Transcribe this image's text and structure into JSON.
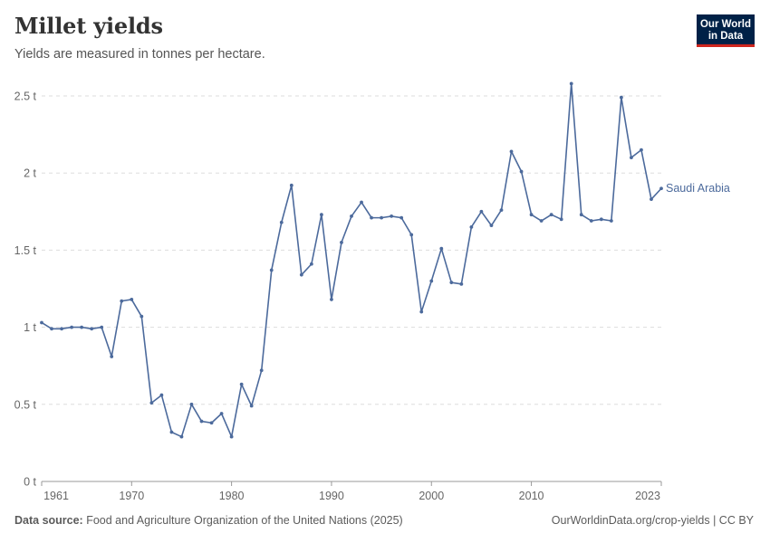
{
  "header": {
    "title": "Millet yields",
    "subtitle": "Yields are measured in tonnes per hectare."
  },
  "logo": {
    "line1": "Our World",
    "line2": "in Data",
    "bg": "#002147",
    "accent": "#ce261e"
  },
  "footer": {
    "source_label": "Data source:",
    "source_text": " Food and Agriculture Organization of the United Nations (2025)",
    "url_license": "OurWorldinData.org/crop-yields | CC BY"
  },
  "chart_data": {
    "type": "line",
    "title": "Millet yields",
    "xlabel": "",
    "ylabel": "",
    "xlim": [
      1961,
      2023
    ],
    "ylim": [
      0,
      2.5
    ],
    "y_ticks": [
      0,
      0.5,
      1,
      1.5,
      2,
      2.5
    ],
    "y_tick_labels": [
      "0 t",
      "0.5 t",
      "1 t",
      "1.5 t",
      "2 t",
      "2.5 t"
    ],
    "x_ticks": [
      1961,
      1970,
      1980,
      1990,
      2000,
      2010,
      2023
    ],
    "x_tick_labels": [
      "1961",
      "1970",
      "1980",
      "1990",
      "2000",
      "2010",
      "2023"
    ],
    "grid": "horizontal dashed",
    "series": [
      {
        "name": "Saudi Arabia",
        "color": "#4c6a9c",
        "x": [
          1961,
          1962,
          1963,
          1964,
          1965,
          1966,
          1967,
          1968,
          1969,
          1970,
          1971,
          1972,
          1973,
          1974,
          1975,
          1976,
          1977,
          1978,
          1979,
          1980,
          1981,
          1982,
          1983,
          1984,
          1985,
          1986,
          1987,
          1988,
          1989,
          1990,
          1991,
          1992,
          1993,
          1994,
          1995,
          1996,
          1997,
          1998,
          1999,
          2000,
          2001,
          2002,
          2003,
          2004,
          2005,
          2006,
          2007,
          2008,
          2009,
          2010,
          2011,
          2012,
          2013,
          2014,
          2015,
          2016,
          2017,
          2018,
          2019,
          2020,
          2021,
          2022,
          2023
        ],
        "values": [
          1.03,
          0.99,
          0.99,
          1.0,
          1.0,
          0.99,
          1.0,
          0.81,
          1.17,
          1.18,
          1.07,
          0.51,
          0.56,
          0.32,
          0.29,
          0.5,
          0.39,
          0.38,
          0.44,
          0.29,
          0.63,
          0.49,
          0.72,
          1.37,
          1.68,
          1.92,
          1.34,
          1.41,
          1.73,
          1.18,
          1.55,
          1.72,
          1.81,
          1.71,
          1.71,
          1.72,
          1.71,
          1.6,
          1.1,
          1.3,
          1.51,
          1.29,
          1.28,
          1.65,
          1.75,
          1.66,
          1.76,
          2.14,
          2.01,
          1.73,
          1.69,
          1.73,
          1.7,
          2.58,
          1.73,
          1.69,
          1.7,
          1.69,
          2.49,
          2.1,
          2.15,
          1.83,
          1.9
        ]
      }
    ]
  }
}
